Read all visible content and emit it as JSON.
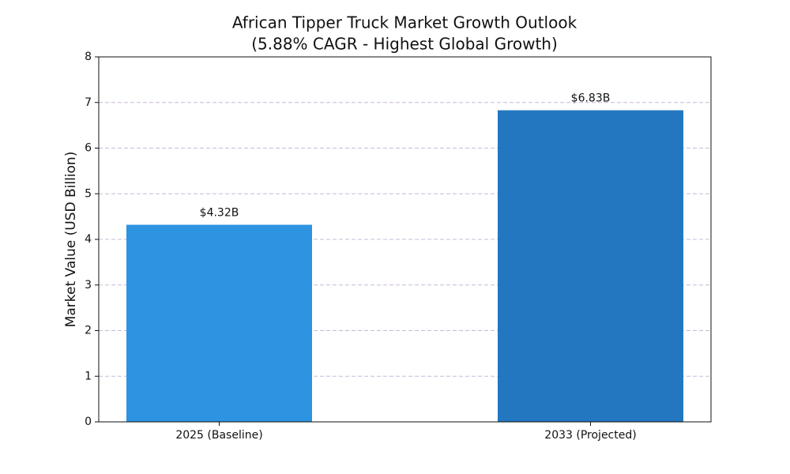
{
  "chart_data": {
    "type": "bar",
    "title": [
      "African Tipper Truck Market Growth Outlook",
      "(5.88% CAGR - Highest Global Growth)"
    ],
    "ylabel": "Market Value (USD Billion)",
    "categories": [
      "2025 (Baseline)",
      "2033 (Projected)"
    ],
    "values": [
      4.32,
      6.83
    ],
    "value_labels": [
      "$4.32B",
      "$6.83B"
    ],
    "colors": [
      "#2e93e0",
      "#2277c0"
    ],
    "ylim": [
      0,
      8
    ],
    "yticks": [
      0,
      1,
      2,
      3,
      4,
      5,
      6,
      7,
      8
    ],
    "grid": true
  }
}
